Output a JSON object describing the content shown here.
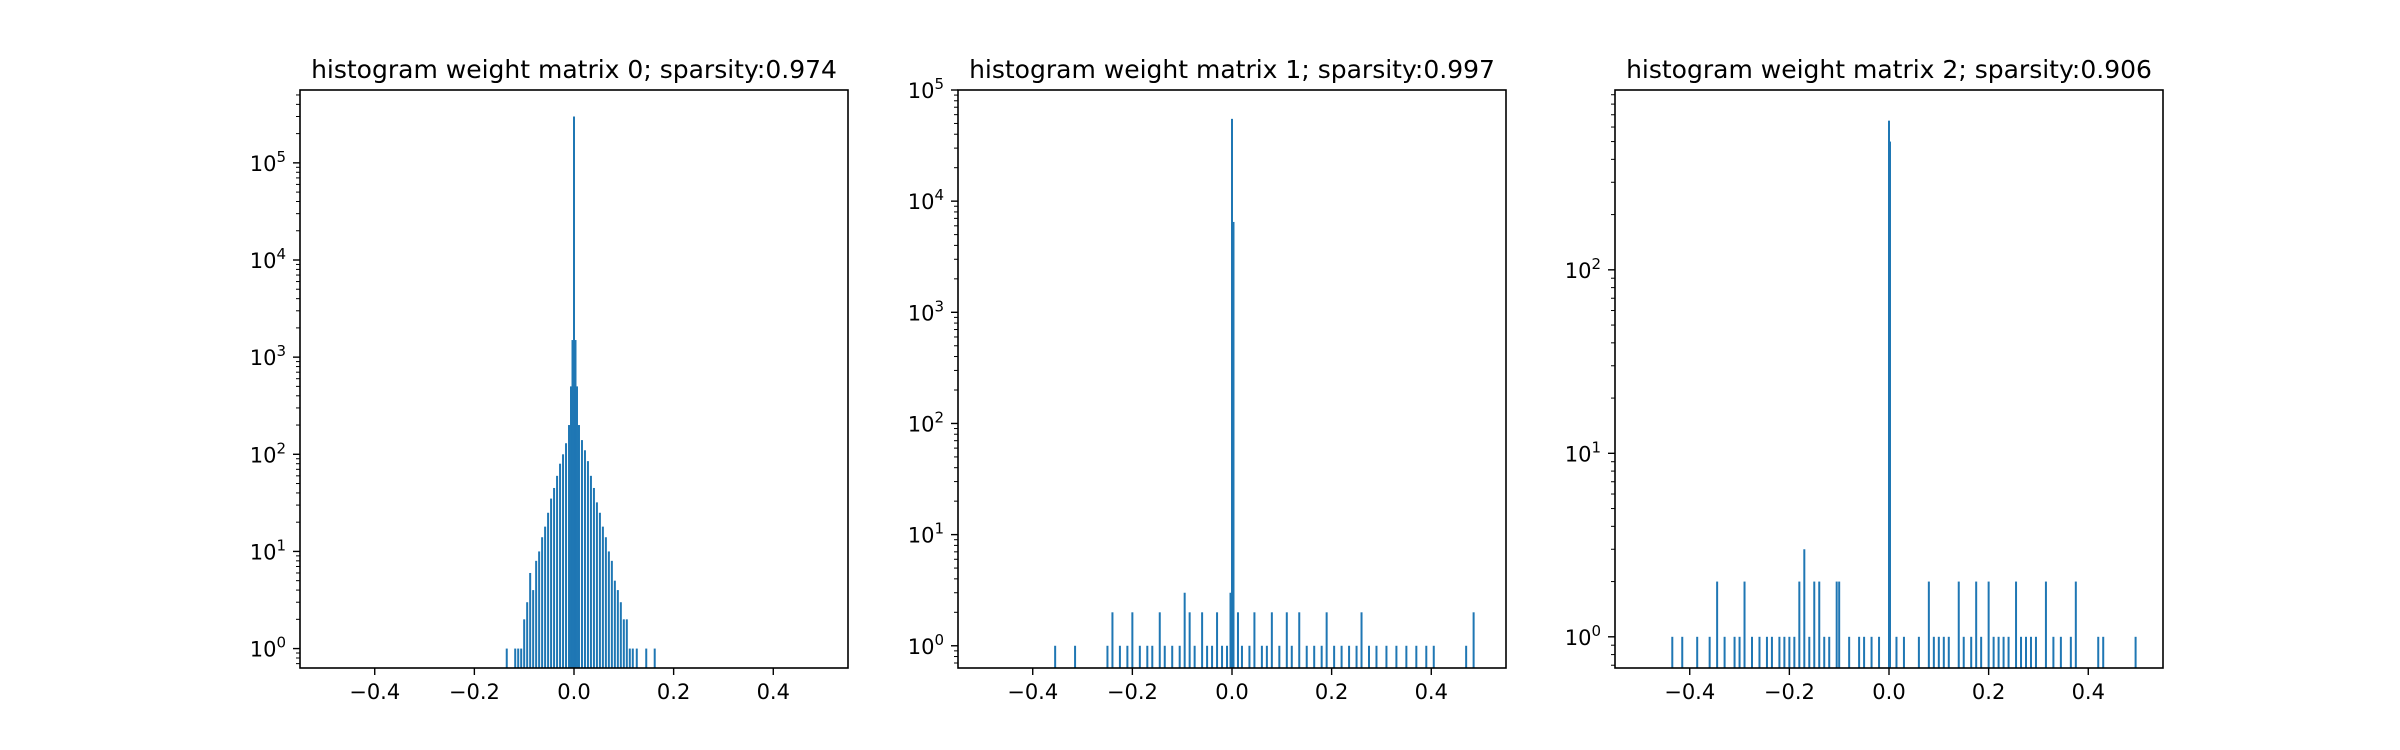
{
  "bar_color": "#1f77b4",
  "chart_data": [
    {
      "type": "bar",
      "title": "histogram weight matrix 0; sparsity:0.974",
      "xlabel": "",
      "ylabel": "",
      "xlim": [
        -0.55,
        0.55
      ],
      "ylim_log10": [
        -0.2,
        5.75
      ],
      "yscale": "log",
      "x_ticks": [
        -0.4,
        -0.2,
        0.0,
        0.2,
        0.4
      ],
      "x_tick_labels": [
        "−0.4",
        "−0.2",
        "0.0",
        "0.2",
        "0.4"
      ],
      "y_ticks": [
        {
          "value": 1,
          "base": "10",
          "exp": "0"
        },
        {
          "value": 10,
          "base": "10",
          "exp": "1"
        },
        {
          "value": 100,
          "base": "10",
          "exp": "2"
        },
        {
          "value": 1000,
          "base": "10",
          "exp": "3"
        },
        {
          "value": 10000,
          "base": "10",
          "exp": "4"
        },
        {
          "value": 100000,
          "base": "10",
          "exp": "5"
        }
      ],
      "bars": [
        {
          "x": -0.135,
          "count": 1
        },
        {
          "x": -0.118,
          "count": 1
        },
        {
          "x": -0.112,
          "count": 1
        },
        {
          "x": -0.106,
          "count": 1
        },
        {
          "x": -0.1,
          "count": 2
        },
        {
          "x": -0.094,
          "count": 3
        },
        {
          "x": -0.088,
          "count": 6
        },
        {
          "x": -0.082,
          "count": 4
        },
        {
          "x": -0.076,
          "count": 8
        },
        {
          "x": -0.07,
          "count": 10
        },
        {
          "x": -0.064,
          "count": 14
        },
        {
          "x": -0.058,
          "count": 18
        },
        {
          "x": -0.052,
          "count": 25
        },
        {
          "x": -0.046,
          "count": 35
        },
        {
          "x": -0.04,
          "count": 45
        },
        {
          "x": -0.034,
          "count": 60
        },
        {
          "x": -0.028,
          "count": 80
        },
        {
          "x": -0.022,
          "count": 100
        },
        {
          "x": -0.016,
          "count": 130
        },
        {
          "x": -0.01,
          "count": 200
        },
        {
          "x": -0.006,
          "count": 500
        },
        {
          "x": -0.003,
          "count": 1500
        },
        {
          "x": 0.0,
          "count": 300000
        },
        {
          "x": 0.003,
          "count": 1500
        },
        {
          "x": 0.006,
          "count": 500
        },
        {
          "x": 0.01,
          "count": 200
        },
        {
          "x": 0.016,
          "count": 140
        },
        {
          "x": 0.022,
          "count": 110
        },
        {
          "x": 0.028,
          "count": 85
        },
        {
          "x": 0.034,
          "count": 60
        },
        {
          "x": 0.04,
          "count": 45
        },
        {
          "x": 0.046,
          "count": 32
        },
        {
          "x": 0.052,
          "count": 25
        },
        {
          "x": 0.058,
          "count": 18
        },
        {
          "x": 0.064,
          "count": 14
        },
        {
          "x": 0.07,
          "count": 10
        },
        {
          "x": 0.076,
          "count": 8
        },
        {
          "x": 0.082,
          "count": 5
        },
        {
          "x": 0.088,
          "count": 4
        },
        {
          "x": 0.094,
          "count": 3
        },
        {
          "x": 0.1,
          "count": 2
        },
        {
          "x": 0.106,
          "count": 2
        },
        {
          "x": 0.112,
          "count": 1
        },
        {
          "x": 0.118,
          "count": 1
        },
        {
          "x": 0.126,
          "count": 1
        },
        {
          "x": 0.145,
          "count": 1
        },
        {
          "x": 0.162,
          "count": 1
        }
      ]
    },
    {
      "type": "bar",
      "title": "histogram weight matrix 1; sparsity:0.997",
      "xlabel": "",
      "ylabel": "",
      "xlim": [
        -0.55,
        0.55
      ],
      "ylim_log10": [
        -0.2,
        5.0
      ],
      "yscale": "log",
      "x_ticks": [
        -0.4,
        -0.2,
        0.0,
        0.2,
        0.4
      ],
      "x_tick_labels": [
        "−0.4",
        "−0.2",
        "0.0",
        "0.2",
        "0.4"
      ],
      "y_ticks": [
        {
          "value": 1,
          "base": "10",
          "exp": "0"
        },
        {
          "value": 10,
          "base": "10",
          "exp": "1"
        },
        {
          "value": 100,
          "base": "10",
          "exp": "2"
        },
        {
          "value": 1000,
          "base": "10",
          "exp": "3"
        },
        {
          "value": 10000,
          "base": "10",
          "exp": "4"
        },
        {
          "value": 100000,
          "base": "10",
          "exp": "5"
        }
      ],
      "bars": [
        {
          "x": -0.355,
          "count": 1
        },
        {
          "x": -0.315,
          "count": 1
        },
        {
          "x": -0.25,
          "count": 1
        },
        {
          "x": -0.24,
          "count": 2
        },
        {
          "x": -0.225,
          "count": 1
        },
        {
          "x": -0.21,
          "count": 1
        },
        {
          "x": -0.2,
          "count": 2
        },
        {
          "x": -0.185,
          "count": 1
        },
        {
          "x": -0.17,
          "count": 1
        },
        {
          "x": -0.16,
          "count": 1
        },
        {
          "x": -0.145,
          "count": 2
        },
        {
          "x": -0.135,
          "count": 1
        },
        {
          "x": -0.12,
          "count": 1
        },
        {
          "x": -0.105,
          "count": 1
        },
        {
          "x": -0.095,
          "count": 3
        },
        {
          "x": -0.085,
          "count": 2
        },
        {
          "x": -0.075,
          "count": 1
        },
        {
          "x": -0.06,
          "count": 2
        },
        {
          "x": -0.05,
          "count": 1
        },
        {
          "x": -0.04,
          "count": 1
        },
        {
          "x": -0.03,
          "count": 2
        },
        {
          "x": -0.02,
          "count": 1
        },
        {
          "x": -0.01,
          "count": 1
        },
        {
          "x": -0.003,
          "count": 3
        },
        {
          "x": 0.0,
          "count": 55000
        },
        {
          "x": 0.003,
          "count": 6500
        },
        {
          "x": 0.012,
          "count": 2
        },
        {
          "x": 0.02,
          "count": 1
        },
        {
          "x": 0.035,
          "count": 1
        },
        {
          "x": 0.045,
          "count": 2
        },
        {
          "x": 0.06,
          "count": 1
        },
        {
          "x": 0.07,
          "count": 1
        },
        {
          "x": 0.08,
          "count": 2
        },
        {
          "x": 0.095,
          "count": 1
        },
        {
          "x": 0.11,
          "count": 2
        },
        {
          "x": 0.12,
          "count": 1
        },
        {
          "x": 0.135,
          "count": 2
        },
        {
          "x": 0.15,
          "count": 1
        },
        {
          "x": 0.165,
          "count": 1
        },
        {
          "x": 0.18,
          "count": 1
        },
        {
          "x": 0.19,
          "count": 2
        },
        {
          "x": 0.205,
          "count": 1
        },
        {
          "x": 0.22,
          "count": 1
        },
        {
          "x": 0.235,
          "count": 1
        },
        {
          "x": 0.25,
          "count": 1
        },
        {
          "x": 0.26,
          "count": 2
        },
        {
          "x": 0.275,
          "count": 1
        },
        {
          "x": 0.29,
          "count": 1
        },
        {
          "x": 0.31,
          "count": 1
        },
        {
          "x": 0.33,
          "count": 1
        },
        {
          "x": 0.35,
          "count": 1
        },
        {
          "x": 0.37,
          "count": 1
        },
        {
          "x": 0.39,
          "count": 1
        },
        {
          "x": 0.405,
          "count": 1
        },
        {
          "x": 0.47,
          "count": 1
        },
        {
          "x": 0.485,
          "count": 2
        }
      ]
    },
    {
      "type": "bar",
      "title": "histogram weight matrix 2; sparsity:0.906",
      "xlabel": "",
      "ylabel": "",
      "xlim": [
        -0.55,
        0.55
      ],
      "ylim_log10": [
        -0.17,
        2.98
      ],
      "yscale": "log",
      "x_ticks": [
        -0.4,
        -0.2,
        0.0,
        0.2,
        0.4
      ],
      "x_tick_labels": [
        "−0.4",
        "−0.2",
        "0.0",
        "0.2",
        "0.4"
      ],
      "y_ticks": [
        {
          "value": 1,
          "base": "10",
          "exp": "0"
        },
        {
          "value": 10,
          "base": "10",
          "exp": "1"
        },
        {
          "value": 100,
          "base": "10",
          "exp": "2"
        }
      ],
      "bars": [
        {
          "x": -0.435,
          "count": 1
        },
        {
          "x": -0.415,
          "count": 1
        },
        {
          "x": -0.385,
          "count": 1
        },
        {
          "x": -0.36,
          "count": 1
        },
        {
          "x": -0.345,
          "count": 2
        },
        {
          "x": -0.33,
          "count": 1
        },
        {
          "x": -0.31,
          "count": 1
        },
        {
          "x": -0.3,
          "count": 1
        },
        {
          "x": -0.29,
          "count": 2
        },
        {
          "x": -0.275,
          "count": 1
        },
        {
          "x": -0.26,
          "count": 1
        },
        {
          "x": -0.245,
          "count": 1
        },
        {
          "x": -0.235,
          "count": 1
        },
        {
          "x": -0.22,
          "count": 1
        },
        {
          "x": -0.21,
          "count": 1
        },
        {
          "x": -0.2,
          "count": 1
        },
        {
          "x": -0.19,
          "count": 1
        },
        {
          "x": -0.18,
          "count": 2
        },
        {
          "x": -0.17,
          "count": 3
        },
        {
          "x": -0.16,
          "count": 1
        },
        {
          "x": -0.15,
          "count": 2
        },
        {
          "x": -0.14,
          "count": 2
        },
        {
          "x": -0.13,
          "count": 1
        },
        {
          "x": -0.12,
          "count": 1
        },
        {
          "x": -0.105,
          "count": 2
        },
        {
          "x": -0.1,
          "count": 2
        },
        {
          "x": -0.08,
          "count": 1
        },
        {
          "x": -0.06,
          "count": 1
        },
        {
          "x": -0.05,
          "count": 1
        },
        {
          "x": -0.035,
          "count": 1
        },
        {
          "x": -0.02,
          "count": 1
        },
        {
          "x": 0.0,
          "count": 650
        },
        {
          "x": 0.002,
          "count": 500
        },
        {
          "x": 0.015,
          "count": 1
        },
        {
          "x": 0.03,
          "count": 1
        },
        {
          "x": 0.06,
          "count": 1
        },
        {
          "x": 0.08,
          "count": 2
        },
        {
          "x": 0.09,
          "count": 1
        },
        {
          "x": 0.1,
          "count": 1
        },
        {
          "x": 0.11,
          "count": 1
        },
        {
          "x": 0.12,
          "count": 1
        },
        {
          "x": 0.14,
          "count": 2
        },
        {
          "x": 0.15,
          "count": 1
        },
        {
          "x": 0.165,
          "count": 1
        },
        {
          "x": 0.175,
          "count": 2
        },
        {
          "x": 0.185,
          "count": 1
        },
        {
          "x": 0.2,
          "count": 2
        },
        {
          "x": 0.21,
          "count": 1
        },
        {
          "x": 0.22,
          "count": 1
        },
        {
          "x": 0.23,
          "count": 1
        },
        {
          "x": 0.24,
          "count": 1
        },
        {
          "x": 0.255,
          "count": 2
        },
        {
          "x": 0.265,
          "count": 1
        },
        {
          "x": 0.275,
          "count": 1
        },
        {
          "x": 0.285,
          "count": 1
        },
        {
          "x": 0.295,
          "count": 1
        },
        {
          "x": 0.315,
          "count": 2
        },
        {
          "x": 0.33,
          "count": 1
        },
        {
          "x": 0.345,
          "count": 1
        },
        {
          "x": 0.365,
          "count": 1
        },
        {
          "x": 0.375,
          "count": 2
        },
        {
          "x": 0.42,
          "count": 1
        },
        {
          "x": 0.43,
          "count": 1
        },
        {
          "x": 0.495,
          "count": 1
        }
      ]
    }
  ]
}
